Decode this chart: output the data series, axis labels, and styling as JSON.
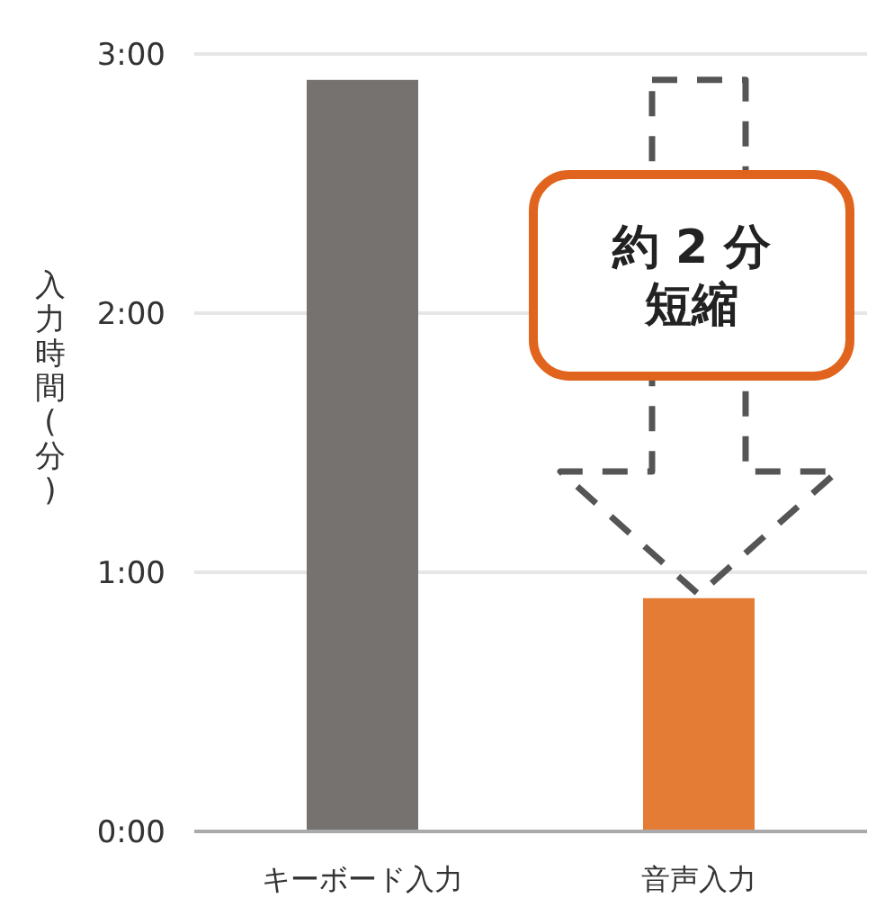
{
  "chart_data": {
    "type": "bar",
    "ylabel": "入力時間(分)",
    "categories": [
      "キーボード入力",
      "音声入力"
    ],
    "values": [
      2.9,
      0.9
    ],
    "colors": [
      "#757270",
      "#e57c35"
    ],
    "ylim": [
      0,
      3
    ],
    "yticks": [
      {
        "value": 0,
        "label": "0:00"
      },
      {
        "value": 1,
        "label": "1:00"
      },
      {
        "value": 2,
        "label": "2:00"
      },
      {
        "value": 3,
        "label": "3:00"
      }
    ],
    "grid": "y",
    "annotations": [
      "約 2 分",
      "短縮"
    ]
  }
}
